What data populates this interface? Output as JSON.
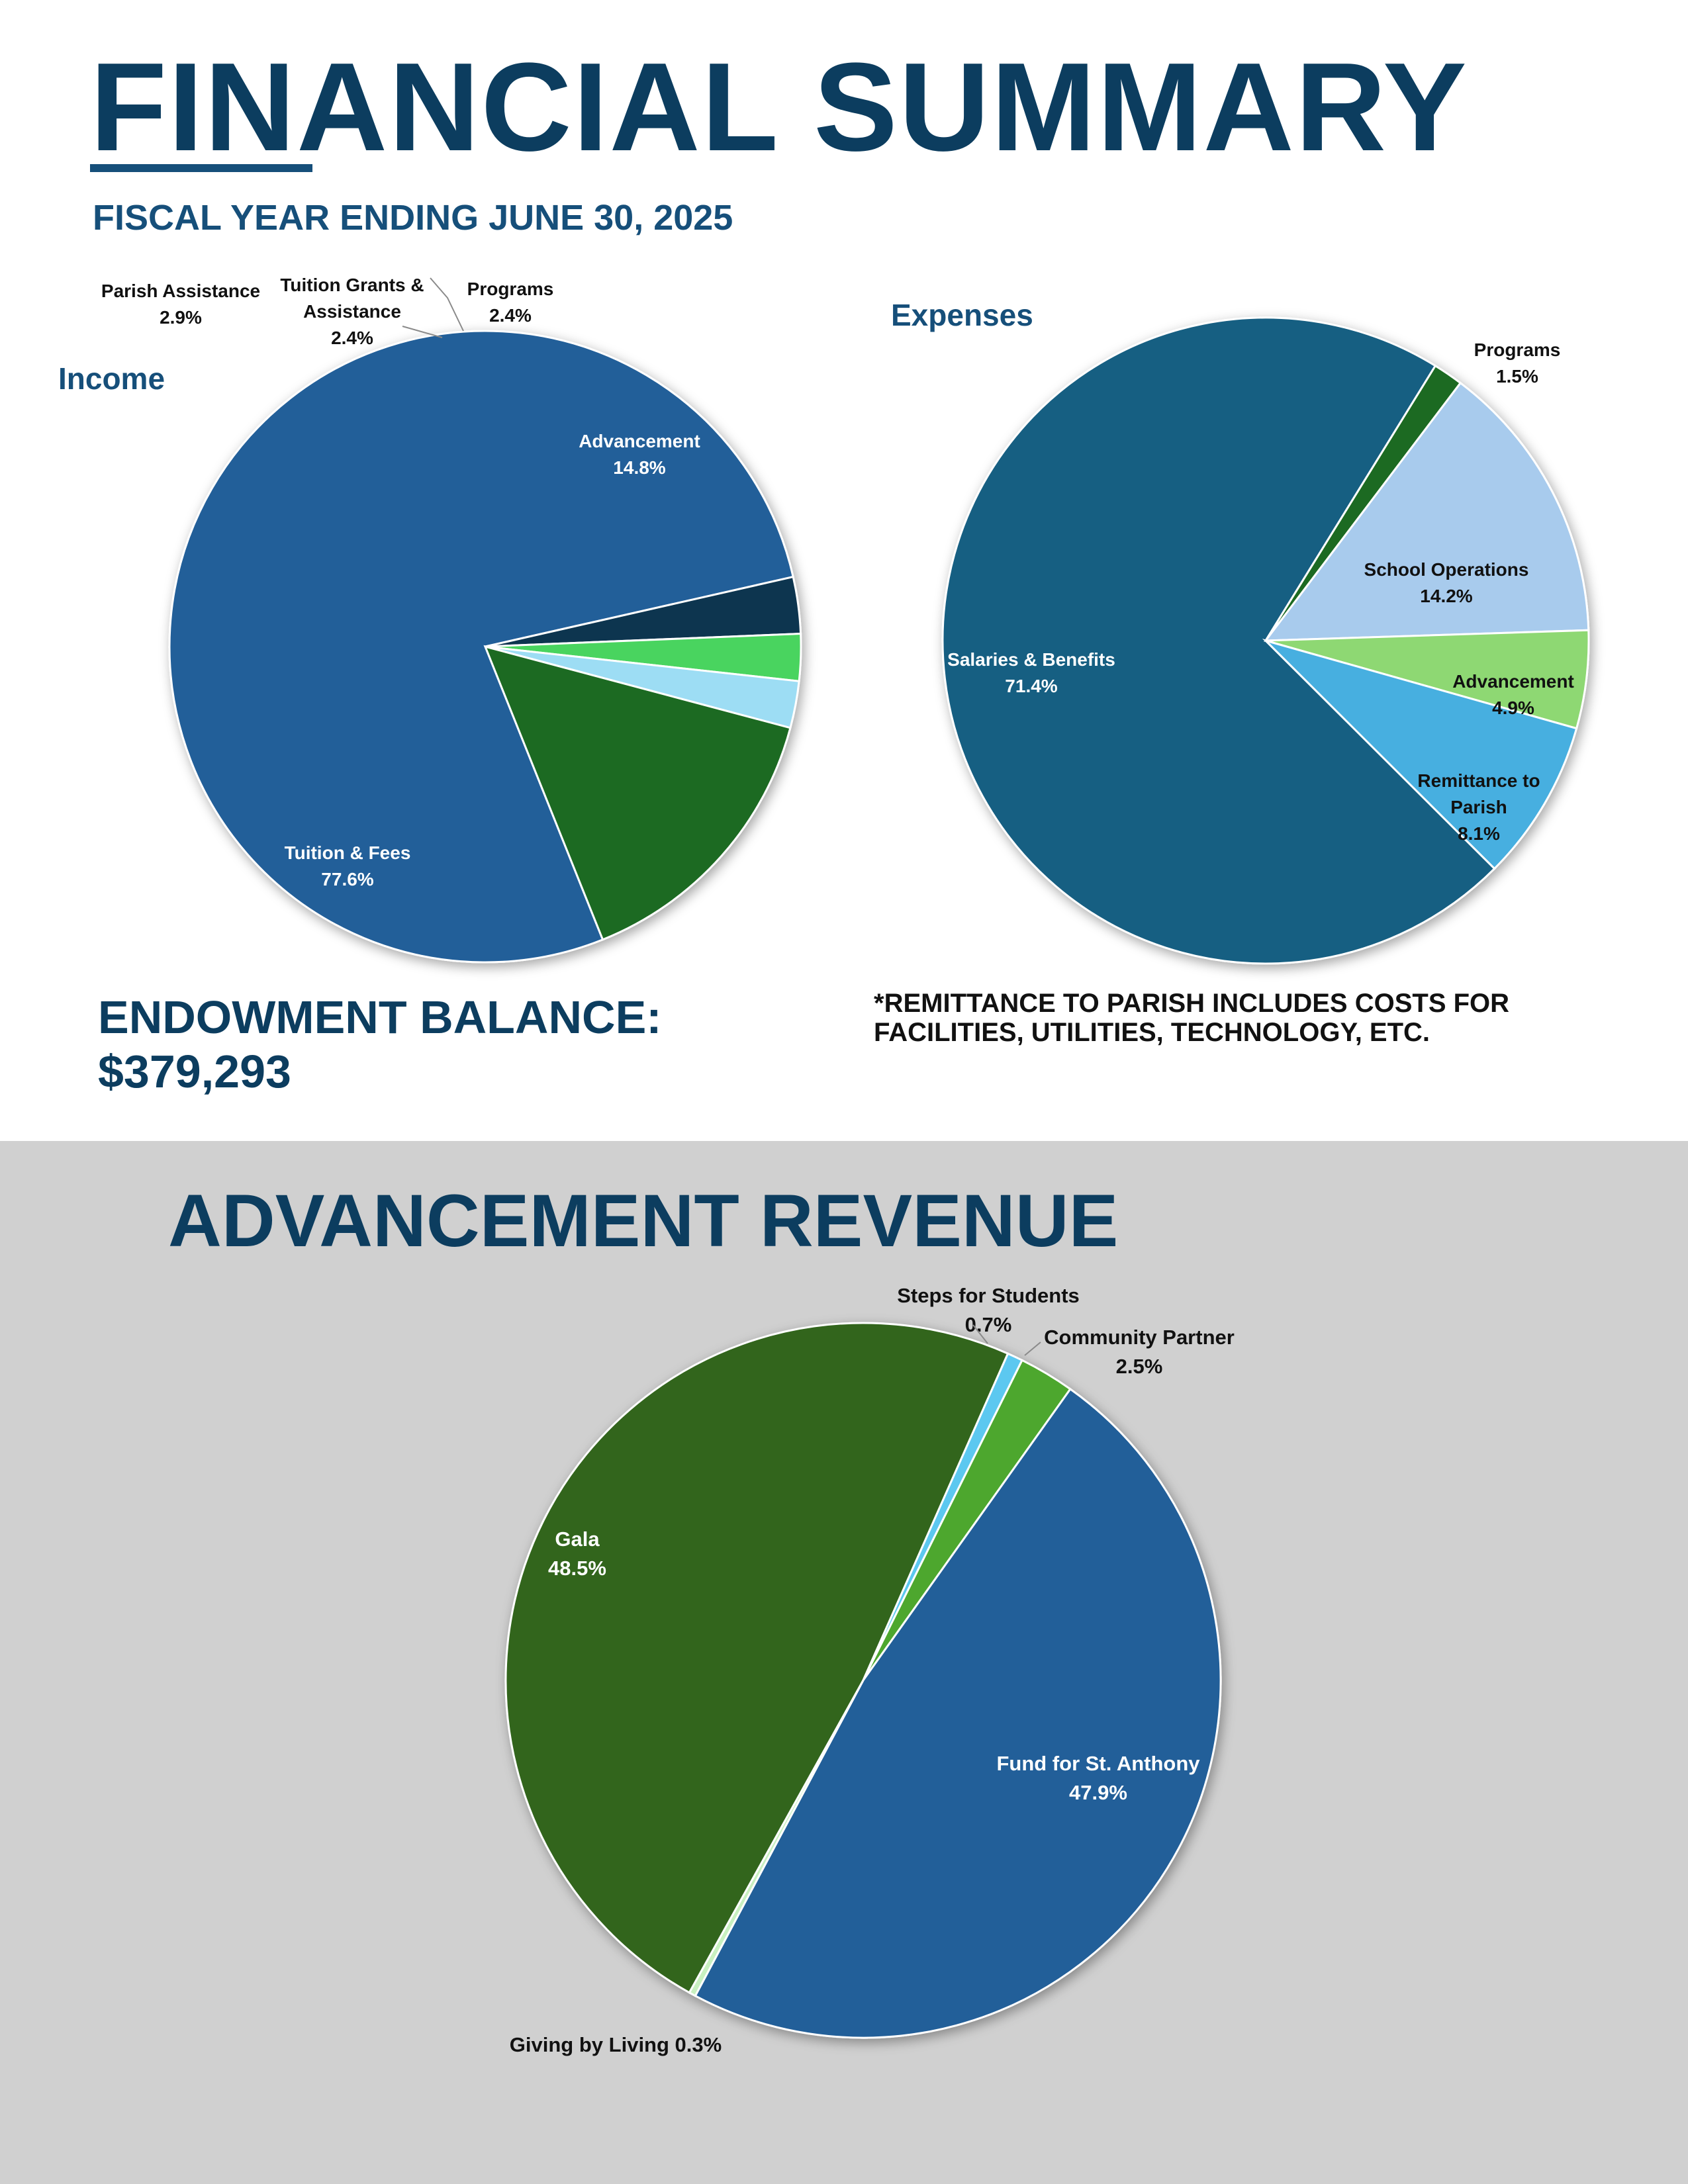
{
  "header": {
    "title": "FINANCIAL SUMMARY",
    "subtitle": "FISCAL YEAR ENDING JUNE 30, 2025"
  },
  "endowment": {
    "label": "ENDOWMENT BALANCE:",
    "value": "$379,293"
  },
  "note": {
    "line1": "*REMITTANCE TO PARISH INCLUDES COSTS FOR",
    "line2": "FACILITIES, UTILITIES, TECHNOLOGY, ETC."
  },
  "advancement_section": {
    "title": "ADVANCEMENT REVENUE"
  },
  "colors": {
    "top_background": "#ffffff",
    "bottom_background": "#d0d0d0",
    "title": "#0c3d5f"
  },
  "chart_data": [
    {
      "id": "income",
      "type": "pie",
      "title": "Income",
      "slices": [
        {
          "label": "Tuition & Fees",
          "value": 77.6,
          "display": "77.6%",
          "color": "#225e99"
        },
        {
          "label": "Parish Assistance",
          "value": 2.9,
          "display": "2.9%",
          "color": "#11354f"
        },
        {
          "label": "Tuition Grants & Assistance",
          "value": 2.4,
          "display": "2.4%",
          "color": "#48d45e"
        },
        {
          "label": "Programs",
          "value": 2.4,
          "display": "2.4%",
          "color": "#9dddf4"
        },
        {
          "label": "Advancement",
          "value": 14.8,
          "display": "14.8%",
          "color": "#1a6b21"
        }
      ]
    },
    {
      "id": "expenses",
      "type": "pie",
      "title": "Expenses",
      "slices": [
        {
          "label": "Salaries & Benefits",
          "value": 71.4,
          "display": "71.4%",
          "color": "#175f82"
        },
        {
          "label": "Programs",
          "value": 1.5,
          "display": "1.5%",
          "color": "#1a6b21"
        },
        {
          "label": "School Operations",
          "value": 14.2,
          "display": "14.2%",
          "color": "#a8cbed"
        },
        {
          "label": "Advancement",
          "value": 4.9,
          "display": "4.9%",
          "color": "#8ed873"
        },
        {
          "label": "Remittance to Parish",
          "value": 8.1,
          "display": "8.1%",
          "color": "#47afe0"
        }
      ]
    },
    {
      "id": "advancement",
      "type": "pie",
      "title": "ADVANCEMENT REVENUE",
      "slices": [
        {
          "label": "Gala",
          "value": 48.5,
          "display": "48.5%",
          "color": "#30651d"
        },
        {
          "label": "Steps for Students",
          "value": 0.7,
          "display": "0.7%",
          "color": "#5bc8f0"
        },
        {
          "label": "Community Partner",
          "value": 2.5,
          "display": "2.5%",
          "color": "#4ea72e"
        },
        {
          "label": "Fund for St. Anthony",
          "value": 47.9,
          "display": "47.9%",
          "color": "#225e99"
        },
        {
          "label": "Giving by Living",
          "value": 0.3,
          "display": "0.3%",
          "color": "#c8f0c0"
        }
      ]
    }
  ]
}
